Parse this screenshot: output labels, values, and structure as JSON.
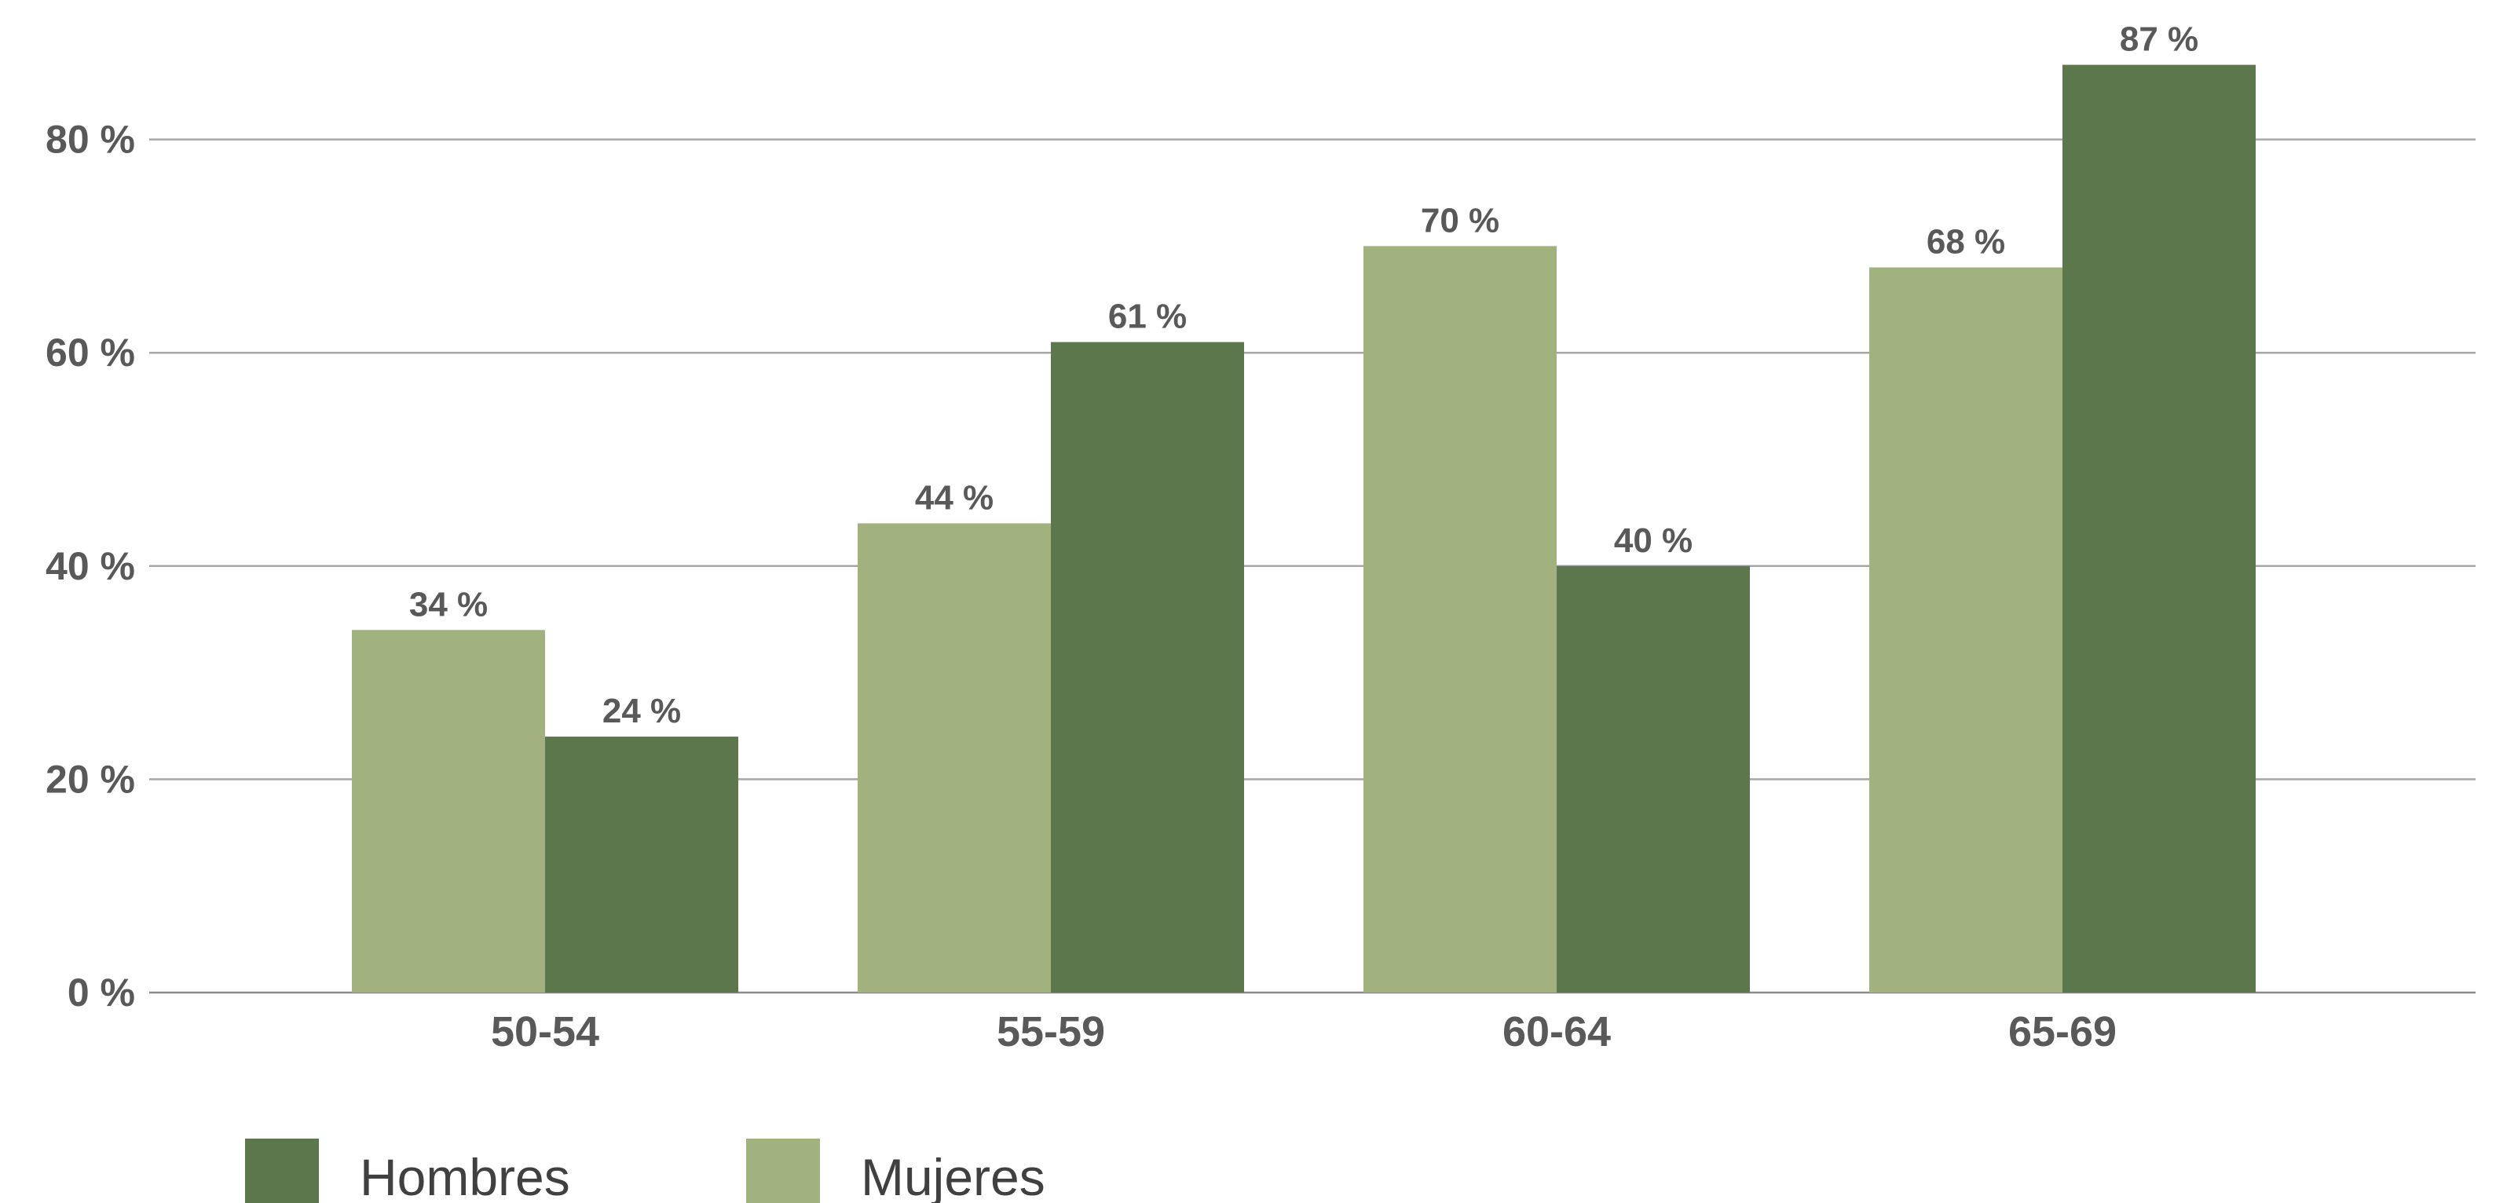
{
  "chart_data": {
    "type": "bar",
    "title": "",
    "xlabel": "",
    "ylabel": "",
    "categories": [
      "50-54",
      "55-59",
      "60-64",
      "65-69"
    ],
    "series": [
      {
        "name": "Mujeres",
        "color": "#a2b27e",
        "values": [
          34,
          44,
          70,
          68
        ],
        "labels": [
          "34 %",
          "44 %",
          "70 %",
          "68 %"
        ]
      },
      {
        "name": "Hombres",
        "color": "#5d774d",
        "values": [
          24,
          61,
          40,
          87
        ],
        "labels": [
          "24 %",
          "61 %",
          "40 %",
          "87 %"
        ]
      }
    ],
    "ylim": [
      0,
      90
    ],
    "yticks": [
      0,
      20,
      40,
      60,
      80
    ],
    "ytick_labels": [
      "0 %",
      "20 %",
      "40 %",
      "60 %",
      "80 %"
    ],
    "grid": true,
    "legend": {
      "position": "bottom-left",
      "entries": [
        {
          "name": "Hombres",
          "color": "#5d774d"
        },
        {
          "name": "Mujeres",
          "color": "#a2b27e"
        }
      ]
    }
  }
}
